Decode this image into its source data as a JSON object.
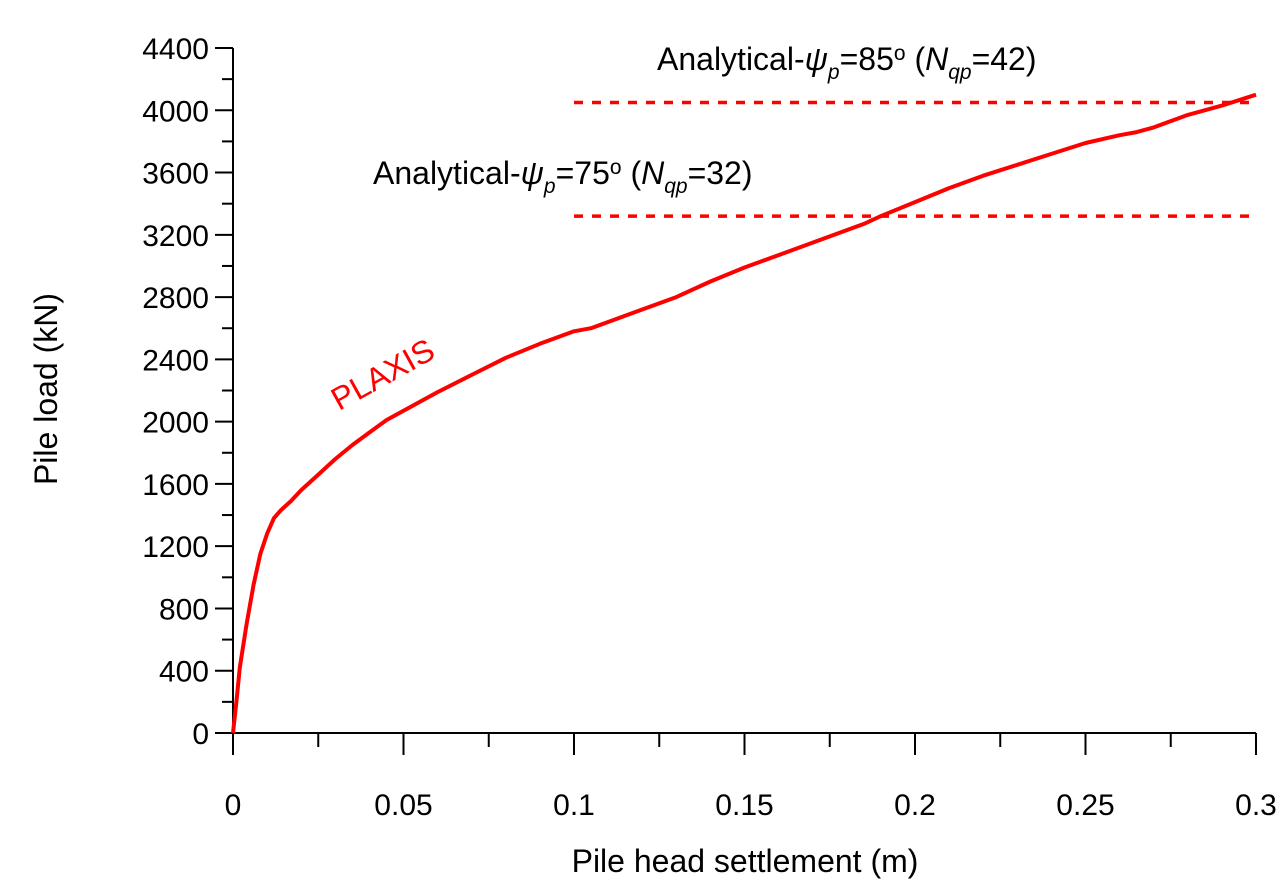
{
  "chart_data": {
    "type": "line",
    "title": "",
    "xlabel": "Pile head settlement (m)",
    "ylabel": "Pile load (kN)",
    "xlim": [
      0,
      0.3
    ],
    "ylim": [
      0,
      4400
    ],
    "x_ticks": [
      "0",
      "0.05",
      "0.1",
      "0.15",
      "0.2",
      "0.25",
      "0.3"
    ],
    "y_ticks": [
      "0",
      "400",
      "800",
      "1200",
      "1600",
      "2000",
      "2400",
      "2800",
      "3200",
      "3600",
      "4000",
      "4400"
    ],
    "grid": false,
    "colors": {
      "series": "#ff0000",
      "axis": "#000000"
    },
    "series": [
      {
        "name": "PLAXIS",
        "style": "solid",
        "x": [
          0,
          0.001,
          0.002,
          0.004,
          0.006,
          0.008,
          0.01,
          0.012,
          0.014,
          0.017,
          0.02,
          0.025,
          0.03,
          0.035,
          0.04,
          0.045,
          0.05,
          0.06,
          0.07,
          0.08,
          0.09,
          0.1,
          0.105,
          0.11,
          0.12,
          0.13,
          0.14,
          0.15,
          0.16,
          0.17,
          0.18,
          0.185,
          0.19,
          0.2,
          0.21,
          0.22,
          0.23,
          0.24,
          0.25,
          0.26,
          0.265,
          0.27,
          0.28,
          0.29,
          0.3
        ],
        "y": [
          0,
          200,
          420,
          700,
          950,
          1150,
          1280,
          1380,
          1430,
          1490,
          1560,
          1660,
          1760,
          1850,
          1930,
          2010,
          2070,
          2190,
          2300,
          2410,
          2500,
          2580,
          2600,
          2640,
          2720,
          2800,
          2900,
          2990,
          3070,
          3150,
          3230,
          3270,
          3320,
          3410,
          3500,
          3580,
          3650,
          3720,
          3790,
          3840,
          3860,
          3890,
          3970,
          4030,
          4100
        ]
      },
      {
        "name": "Analytical-ψp=75° (Nqp=32)",
        "style": "dashed",
        "x": [
          0.1,
          0.3
        ],
        "y": [
          3320,
          3320
        ]
      },
      {
        "name": "Analytical-ψp=85° (Nqp=42)",
        "style": "dashed",
        "x": [
          0.1,
          0.3
        ],
        "y": [
          4050,
          4050
        ]
      }
    ],
    "annotations": {
      "plaxis": "PLAXIS",
      "analytical_75": {
        "prefix": "Analytical-",
        "psi": "ψ",
        "psi_sub": "p",
        "value": "=75",
        "degree": "o",
        "open": " (",
        "n": "N",
        "n_sub": "qp",
        "n_value": "=32)"
      },
      "analytical_85": {
        "prefix": "Analytical-",
        "psi": "ψ",
        "psi_sub": "p",
        "value": "=85",
        "degree": "o",
        "open": " (",
        "n": "N",
        "n_sub": "qp",
        "n_value": "=42)"
      }
    }
  }
}
